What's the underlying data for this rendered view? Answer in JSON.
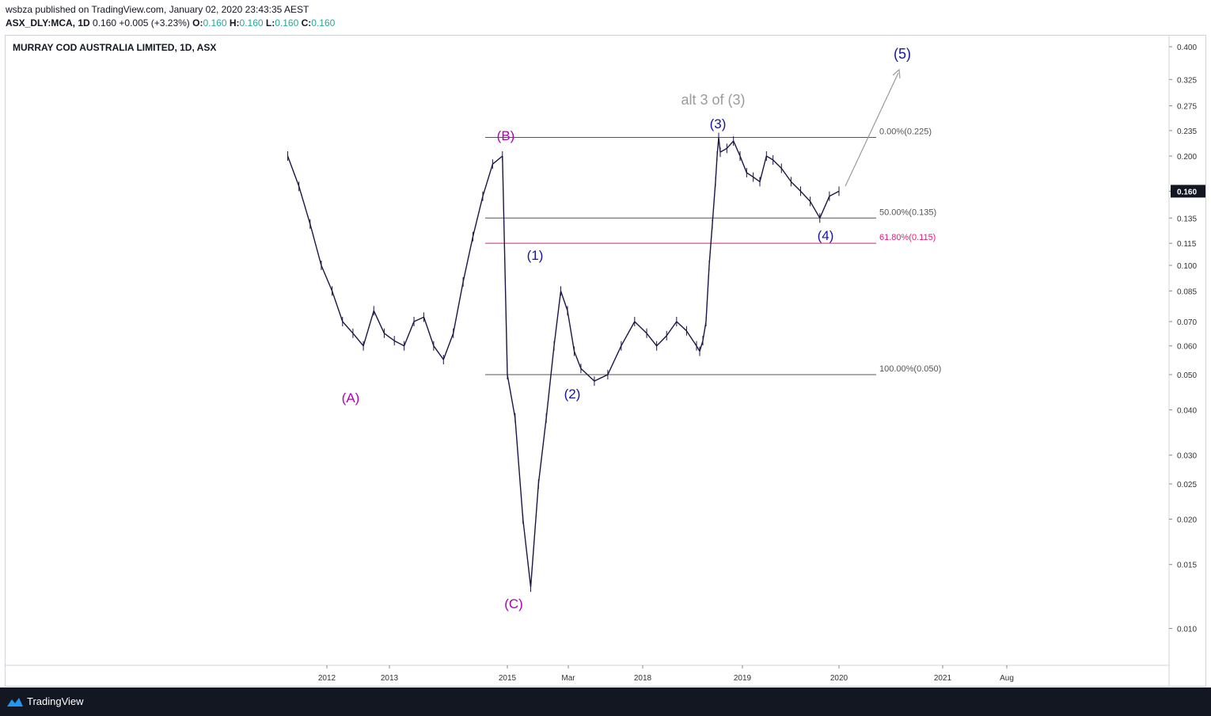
{
  "header": {
    "published": "wsbza published on TradingView.com, January 02, 2020 23:43:35 AEST",
    "symbol": "ASX_DLY:MCA, 1D",
    "last": "0.160",
    "change": "+0.005 (+3.23%)",
    "o_label": "O:",
    "o_val": "0.160",
    "h_label": "H:",
    "h_val": "0.160",
    "l_label": "L:",
    "l_val": "0.160",
    "c_label": "C:",
    "c_val": "0.160"
  },
  "footer": {
    "brand": "TradingView"
  },
  "colors": {
    "bar": "#1a1545",
    "purple": "#b000b5",
    "blue": "#1414a8",
    "gray": "#9b9b9b",
    "pink": "#e5197a",
    "line": "#555555",
    "price_tag_bg": "#131722"
  },
  "chart_data": {
    "type": "line",
    "title": "MURRAY COD AUSTRALIA LIMITED, 1D, ASX",
    "scale": "log",
    "ylim": [
      0.0088,
      0.41
    ],
    "y_ticks": [
      "0.400",
      "0.325",
      "0.275",
      "0.235",
      "0.200",
      "0.160",
      "0.135",
      "0.115",
      "0.100",
      "0.085",
      "0.070",
      "0.060",
      "0.050",
      "0.040",
      "0.030",
      "0.025",
      "0.020",
      "0.015",
      "0.010"
    ],
    "x_ticks": [
      "2012",
      "2013",
      "2015",
      "Mar",
      "2018",
      "2019",
      "2020",
      "2021",
      "Aug"
    ],
    "current_price": "0.160",
    "series": [
      {
        "x": [
          "2011-06",
          "2011-08",
          "2011-10",
          "2011-12",
          "2012-02",
          "2012-04",
          "2012-06",
          "2012-08",
          "2012-10",
          "2012-12",
          "2013-02",
          "2013-04",
          "2013-06",
          "2013-08",
          "2013-10",
          "2013-12",
          "2014-02",
          "2014-04",
          "2014-06",
          "2014-08",
          "2014-10",
          "2014-12",
          "2015-01",
          "2015-02",
          "2015-03",
          "2015-04",
          "2015-05",
          "2015-06",
          "2015-07",
          "2015-08",
          "2015-09",
          "2015-10",
          "2015-11",
          "2016-01",
          "2016-03",
          "2016-05",
          "2016-07",
          "2016-09",
          "2016-11",
          "2017-01",
          "2017-03",
          "2017-05",
          "2017-07",
          "2017-09",
          "2017-11",
          "2018-01",
          "2018-03",
          "2018-05",
          "2018-07",
          "2018-08",
          "2018-09",
          "2018-10",
          "2018-11",
          "2018-12",
          "2019-01",
          "2019-02",
          "2019-03",
          "2019-04",
          "2019-05",
          "2019-06",
          "2019-07",
          "2019-08",
          "2019-09",
          "2019-10",
          "2019-11",
          "2019-12",
          "2020-01"
        ],
        "values": [
          0.2,
          0.165,
          0.13,
          0.1,
          0.085,
          0.07,
          0.065,
          0.06,
          0.075,
          0.065,
          0.062,
          0.06,
          0.07,
          0.072,
          0.06,
          0.055,
          0.065,
          0.09,
          0.12,
          0.155,
          0.19,
          0.2,
          0.05,
          0.038,
          0.02,
          0.013,
          0.025,
          0.038,
          0.06,
          0.085,
          0.075,
          0.058,
          0.052,
          0.048,
          0.05,
          0.06,
          0.07,
          0.065,
          0.06,
          0.064,
          0.07,
          0.066,
          0.06,
          0.058,
          0.062,
          0.07,
          0.1,
          0.13,
          0.17,
          0.2,
          0.225,
          0.205,
          0.21,
          0.22,
          0.2,
          0.18,
          0.175,
          0.17,
          0.2,
          0.195,
          0.185,
          0.17,
          0.16,
          0.15,
          0.135,
          0.155,
          0.16
        ]
      }
    ],
    "fib_levels": [
      {
        "label": "0.00%(0.225)",
        "value": 0.225
      },
      {
        "label": "50.00%(0.135)",
        "value": 0.135
      },
      {
        "label": "61.80%(0.115)",
        "value": 0.115
      },
      {
        "label": "100.00%(0.050)",
        "value": 0.05
      }
    ],
    "annotations": {
      "A": "(A)",
      "B": "(B)",
      "C": "(C)",
      "w1": "(1)",
      "w2": "(2)",
      "w3": "(3)",
      "w4": "(4)",
      "w5": "(5)",
      "alt": "alt 3 of (3)"
    }
  }
}
